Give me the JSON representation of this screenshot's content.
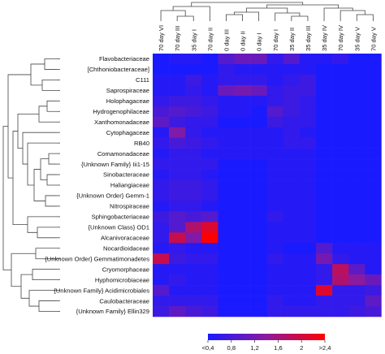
{
  "chart_data": {
    "type": "heatmap",
    "columns": [
      "70 day VI",
      "70 day III",
      "35 day I",
      "70 day II",
      "0 day III",
      "0 day II",
      "0 day I",
      "70 day I",
      "35 day II",
      "35 day III",
      "35 day IV",
      "70 day IV",
      "35 day V",
      "70 day V"
    ],
    "rows": [
      "Flavobacteriaceae",
      "[Chthoniobacteraceae]",
      "C111",
      "Saprospiraceae",
      "Holophagaceae",
      "Hydrogenophilaceae",
      "Xanthomonadaceae",
      "Cytophagaceae",
      "RB40",
      "Comamonadaceae",
      "{Unknown Family} Iii1-15",
      "Sinobacteraceae",
      "Haliangiaceae",
      "{Unknown Order} Gemm-1",
      "Nitrospiraceae",
      "Sphingobacteriaceae",
      "{Unknown Class} OD1",
      "Alcanivoracaceae",
      "Nocardioidaceae",
      "{Unknown Order} Gemmatimonadetes",
      "Cryomorphaceae",
      "Hyphomicrobiaceae",
      "{Unknown Family} Acidimicrobiales",
      "Caulobacteraceae",
      "{Unknown Family} Ellin329"
    ],
    "values": [
      [
        0.4,
        0.5,
        0.5,
        0.4,
        0.9,
        1.1,
        1.1,
        0.6,
        0.9,
        0.5,
        0.5,
        0.6,
        0.4,
        0.4
      ],
      [
        0.4,
        0.4,
        0.4,
        0.4,
        0.6,
        0.5,
        0.5,
        0.5,
        0.5,
        0.5,
        0.4,
        0.4,
        0.4,
        0.4
      ],
      [
        0.5,
        0.5,
        0.7,
        0.5,
        0.6,
        0.6,
        0.6,
        0.5,
        0.6,
        0.7,
        0.4,
        0.4,
        0.4,
        0.4
      ],
      [
        0.5,
        0.5,
        0.6,
        0.5,
        1.1,
        1.2,
        1.1,
        0.6,
        0.7,
        0.7,
        0.4,
        0.4,
        0.4,
        0.4
      ],
      [
        0.6,
        0.7,
        0.7,
        0.6,
        0.5,
        0.5,
        0.5,
        0.6,
        0.7,
        0.6,
        0.4,
        0.4,
        0.4,
        0.4
      ],
      [
        0.8,
        0.9,
        0.8,
        0.7,
        0.5,
        0.5,
        0.4,
        0.9,
        0.7,
        0.6,
        0.4,
        0.4,
        0.4,
        0.4
      ],
      [
        1.0,
        0.7,
        0.6,
        0.6,
        0.4,
        0.4,
        0.4,
        0.7,
        0.6,
        0.6,
        0.4,
        0.4,
        0.4,
        0.4
      ],
      [
        0.5,
        1.3,
        0.6,
        0.5,
        0.5,
        0.5,
        0.5,
        0.5,
        0.6,
        0.5,
        0.4,
        0.4,
        0.4,
        0.4
      ],
      [
        0.6,
        0.8,
        0.7,
        0.6,
        0.5,
        0.5,
        0.5,
        0.5,
        0.6,
        0.6,
        0.4,
        0.4,
        0.4,
        0.4
      ],
      [
        0.5,
        0.6,
        0.6,
        0.5,
        0.5,
        0.5,
        0.5,
        0.5,
        0.5,
        0.5,
        0.4,
        0.4,
        0.4,
        0.4
      ],
      [
        0.6,
        0.6,
        0.6,
        0.6,
        0.4,
        0.4,
        0.4,
        0.5,
        0.5,
        0.5,
        0.4,
        0.4,
        0.4,
        0.4
      ],
      [
        0.5,
        0.6,
        0.6,
        0.5,
        0.4,
        0.4,
        0.4,
        0.5,
        0.5,
        0.5,
        0.4,
        0.4,
        0.4,
        0.4
      ],
      [
        0.6,
        0.7,
        0.7,
        0.6,
        0.4,
        0.4,
        0.4,
        0.5,
        0.5,
        0.5,
        0.4,
        0.4,
        0.4,
        0.4
      ],
      [
        0.6,
        0.7,
        0.7,
        0.6,
        0.4,
        0.4,
        0.4,
        0.5,
        0.5,
        0.5,
        0.4,
        0.4,
        0.4,
        0.4
      ],
      [
        0.5,
        0.6,
        0.6,
        0.5,
        0.4,
        0.4,
        0.4,
        0.5,
        0.5,
        0.5,
        0.4,
        0.4,
        0.4,
        0.4
      ],
      [
        0.7,
        0.9,
        0.8,
        0.9,
        0.4,
        0.4,
        0.4,
        0.6,
        0.5,
        0.5,
        0.4,
        0.4,
        0.4,
        0.4
      ],
      [
        0.6,
        0.9,
        1.7,
        2.1,
        0.4,
        0.4,
        0.4,
        0.5,
        0.5,
        0.5,
        0.4,
        0.4,
        0.4,
        0.4
      ],
      [
        0.6,
        1.9,
        1.3,
        2.4,
        0.4,
        0.4,
        0.4,
        0.5,
        0.5,
        0.5,
        0.4,
        0.4,
        0.4,
        0.4
      ],
      [
        0.5,
        0.6,
        0.5,
        0.5,
        0.4,
        0.4,
        0.4,
        0.5,
        0.4,
        0.4,
        0.9,
        0.5,
        0.5,
        0.5
      ],
      [
        1.9,
        0.7,
        0.6,
        0.6,
        0.4,
        0.4,
        0.4,
        0.6,
        0.5,
        0.5,
        1.2,
        0.6,
        0.5,
        0.5
      ],
      [
        0.5,
        0.5,
        0.5,
        0.5,
        0.4,
        0.4,
        0.4,
        0.5,
        0.5,
        0.5,
        0.6,
        1.8,
        1.0,
        0.5
      ],
      [
        0.5,
        0.6,
        0.5,
        0.5,
        0.4,
        0.4,
        0.4,
        0.5,
        0.5,
        0.5,
        0.6,
        1.7,
        1.4,
        1.1
      ],
      [
        0.9,
        0.5,
        0.5,
        0.5,
        0.4,
        0.4,
        0.4,
        0.5,
        0.5,
        0.5,
        2.1,
        0.6,
        0.6,
        0.7
      ],
      [
        0.6,
        0.6,
        0.6,
        0.6,
        0.4,
        0.4,
        0.4,
        0.6,
        0.5,
        0.5,
        0.6,
        0.6,
        0.6,
        1.0
      ],
      [
        0.7,
        1.0,
        0.8,
        0.7,
        0.4,
        0.4,
        0.4,
        0.6,
        0.6,
        0.6,
        0.6,
        0.6,
        0.7,
        0.8
      ]
    ],
    "color_scale": {
      "min": 0.4,
      "max": 2.4,
      "min_color": "#1a1aff",
      "mid_color": "#8c1a9c",
      "max_color": "#ff0000"
    },
    "colorbar_ticks": [
      "<0,4",
      "0,8",
      "1,2",
      "1,6",
      "2",
      ">2,4"
    ],
    "colorbar_tick_values": [
      0.4,
      0.8,
      1.2,
      1.6,
      2.0,
      2.4
    ]
  }
}
